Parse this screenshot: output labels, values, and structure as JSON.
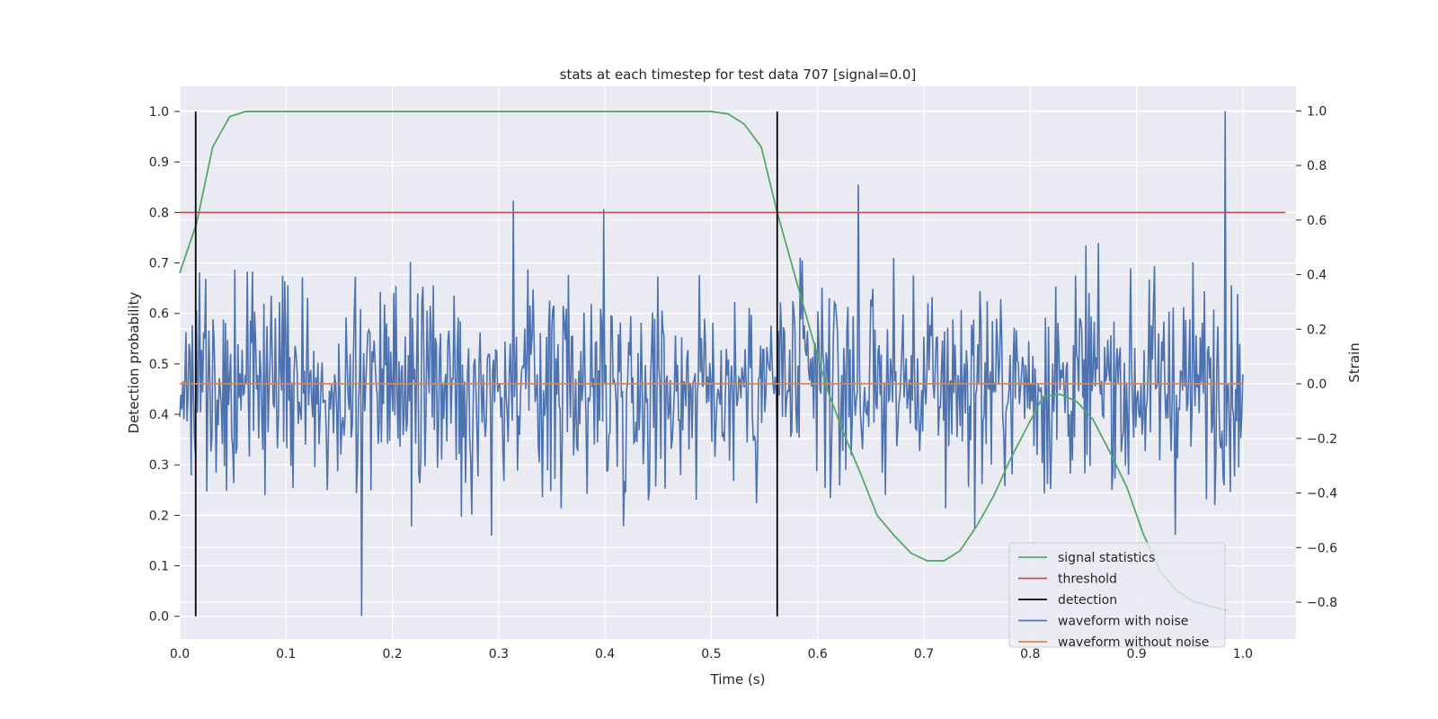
{
  "chart_data": {
    "type": "line",
    "title": "stats at each timestep for test data 707 [signal=0.0]",
    "xlabel": "Time (s)",
    "ylabel": "Detection probability",
    "y2label": "Strain",
    "xlim": [
      0.0,
      1.05
    ],
    "ylim": [
      -0.045,
      1.05
    ],
    "y2lim": [
      -0.935,
      1.09
    ],
    "xticks": [
      "0.0",
      "0.1",
      "0.2",
      "0.3",
      "0.4",
      "0.5",
      "0.6",
      "0.7",
      "0.8",
      "0.9",
      "1.0"
    ],
    "yticks": [
      "0.0",
      "0.1",
      "0.2",
      "0.3",
      "0.4",
      "0.5",
      "0.6",
      "0.7",
      "0.8",
      "0.9",
      "1.0"
    ],
    "y2ticks": [
      "−0.8",
      "−0.6",
      "−0.4",
      "−0.2",
      "0.0",
      "0.2",
      "0.4",
      "0.6",
      "0.8",
      "1.0"
    ],
    "grid": true,
    "legend_position": "lower-right",
    "colors": {
      "background": "#eaeaf2",
      "grid": "#ffffff",
      "signal_statistics": "#55a868",
      "threshold": "#c44e52",
      "detection": "#000000",
      "waveform_with_noise": "#4c72b0",
      "waveform_without_noise": "#dd8452"
    },
    "legend": [
      {
        "label": "signal statistics",
        "series": "signal_statistics"
      },
      {
        "label": "threshold",
        "series": "threshold"
      },
      {
        "label": "detection",
        "series": "detection"
      },
      {
        "label": "waveform with noise",
        "series": "waveform_with_noise"
      },
      {
        "label": "waveform without noise",
        "series": "waveform_without_noise"
      }
    ],
    "series": {
      "signal_statistics": {
        "axis": "left",
        "x": [
          0.0,
          0.016,
          0.031,
          0.047,
          0.062,
          0.078,
          0.5,
          0.516,
          0.531,
          0.547,
          0.562,
          0.578,
          0.594,
          0.609,
          0.625,
          0.641,
          0.656,
          0.672,
          0.688,
          0.703,
          0.719,
          0.734,
          0.75,
          0.766,
          0.781,
          0.797,
          0.812,
          0.828,
          0.844,
          0.859,
          0.875,
          0.891,
          0.906,
          0.922,
          0.938,
          0.953,
          0.969,
          0.984
        ],
        "y": [
          0.68,
          0.78,
          0.93,
          0.99,
          1.0,
          1.0,
          1.0,
          0.995,
          0.975,
          0.93,
          0.8,
          0.68,
          0.56,
          0.45,
          0.36,
          0.28,
          0.2,
          0.16,
          0.125,
          0.11,
          0.11,
          0.13,
          0.18,
          0.24,
          0.31,
          0.375,
          0.435,
          0.44,
          0.425,
          0.39,
          0.325,
          0.255,
          0.165,
          0.09,
          0.05,
          0.03,
          0.02,
          0.012
        ]
      },
      "threshold": {
        "axis": "left",
        "x": [
          0.0,
          1.04
        ],
        "y": [
          0.8,
          0.8
        ]
      },
      "detection": {
        "axis": "left",
        "x": [
          0.015,
          0.562
        ],
        "ymin": 0.0,
        "ymax": 1.0
      },
      "waveform_without_noise": {
        "axis": "right",
        "x": [
          0.0,
          1.0
        ],
        "y": [
          0.0,
          0.0
        ]
      },
      "waveform_with_noise": {
        "axis": "right",
        "x_range": [
          0.0,
          1.0
        ],
        "n_points": 1024,
        "amplitude_std": 0.26,
        "approx_range": [
          -0.85,
          1.0
        ],
        "notable_points": [
          {
            "x": 0.171,
            "y": -0.85
          },
          {
            "x": 0.314,
            "y": 0.67
          },
          {
            "x": 0.399,
            "y": 0.64
          },
          {
            "x": 0.638,
            "y": 0.73
          },
          {
            "x": 0.983,
            "y": 1.0
          }
        ]
      }
    }
  }
}
